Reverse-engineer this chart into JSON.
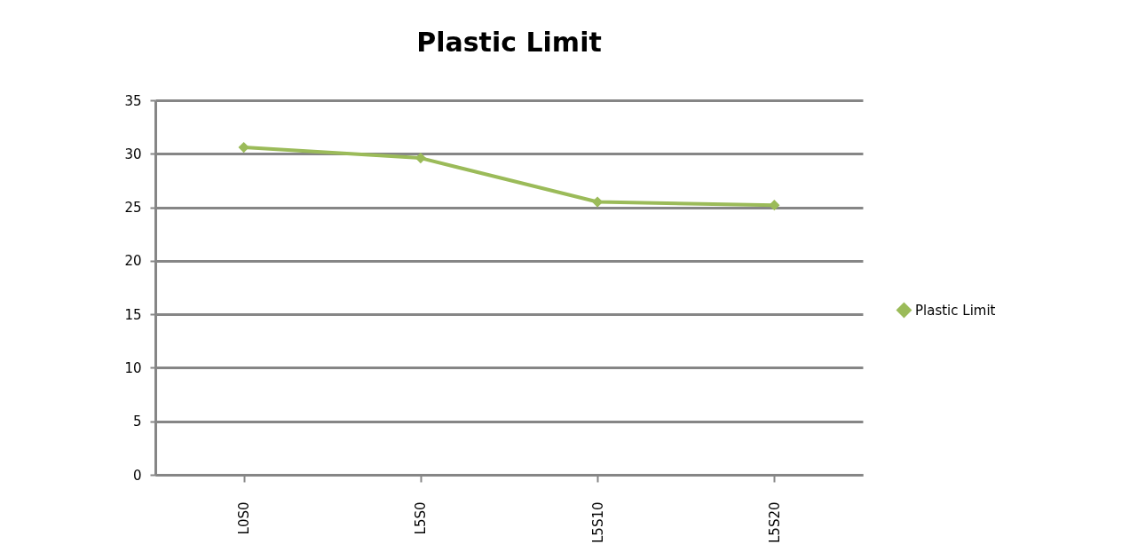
{
  "chart_data": {
    "type": "line",
    "title": "Plastic Limit",
    "categories": [
      "L0S0",
      "L5S0",
      "L5S10",
      "L5S20"
    ],
    "series": [
      {
        "name": "Plastic Limit",
        "color": "#9bbb59",
        "values": [
          30.6,
          29.6,
          25.5,
          25.2
        ]
      }
    ],
    "ylim": [
      0,
      35
    ],
    "yticks": [
      0,
      5,
      10,
      15,
      20,
      25,
      30,
      35
    ],
    "grid": "y",
    "legend": "right",
    "marker": "diamond",
    "line_style": "solid"
  }
}
